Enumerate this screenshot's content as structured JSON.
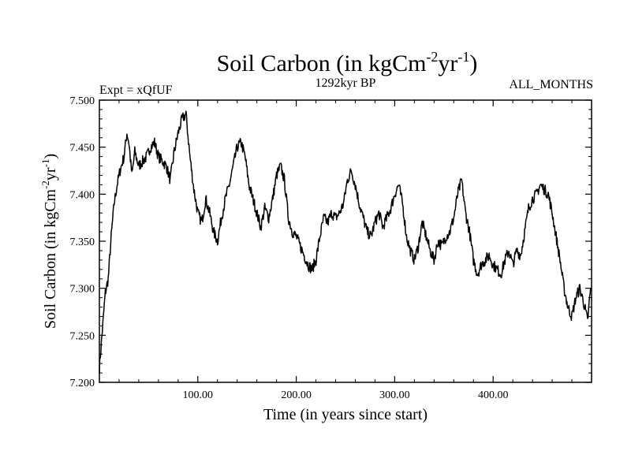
{
  "chart_data": {
    "type": "line",
    "title": {
      "main": "Soil Carbon (in kgCm",
      "sup1": "-2",
      "mid": "yr",
      "sup2": "-1",
      "end": ")"
    },
    "subtitle_left": "Expt = xQfUF",
    "subtitle_center": "1292kyr BP",
    "subtitle_right": "ALL_MONTHS",
    "xlabel": "Time (in years since start)",
    "ylabel": {
      "main": "Soil Carbon (in kgCm",
      "sup1": "-2",
      "mid": "yr",
      "sup2": "-1",
      "end": ")"
    },
    "xlim": [
      0,
      500
    ],
    "ylim": [
      7.2,
      7.5
    ],
    "x_ticks": [
      {
        "value": 100,
        "label": "100.00"
      },
      {
        "value": 200,
        "label": "200.00"
      },
      {
        "value": 300,
        "label": "300.00"
      },
      {
        "value": 400,
        "label": "400.00"
      }
    ],
    "y_ticks": [
      {
        "value": 7.2,
        "label": "7.200"
      },
      {
        "value": 7.25,
        "label": "7.250"
      },
      {
        "value": 7.3,
        "label": "7.300"
      },
      {
        "value": 7.35,
        "label": "7.350"
      },
      {
        "value": 7.4,
        "label": "7.400"
      },
      {
        "value": 7.45,
        "label": "7.450"
      },
      {
        "value": 7.5,
        "label": "7.500"
      }
    ],
    "series": [
      {
        "name": "Soil Carbon",
        "x": [
          0,
          3,
          6,
          9,
          12,
          15,
          18,
          21,
          25,
          28,
          30,
          33,
          36,
          40,
          44,
          48,
          52,
          56,
          60,
          64,
          68,
          72,
          76,
          80,
          84,
          88,
          92,
          96,
          100,
          104,
          108,
          112,
          116,
          120,
          124,
          128,
          132,
          136,
          140,
          144,
          148,
          152,
          156,
          160,
          164,
          168,
          172,
          176,
          180,
          184,
          188,
          192,
          196,
          200,
          204,
          208,
          212,
          216,
          220,
          224,
          228,
          232,
          236,
          240,
          244,
          248,
          252,
          256,
          260,
          264,
          268,
          272,
          276,
          280,
          284,
          288,
          292,
          296,
          300,
          304,
          308,
          312,
          316,
          320,
          324,
          328,
          332,
          336,
          340,
          344,
          348,
          352,
          356,
          360,
          364,
          368,
          372,
          376,
          380,
          384,
          388,
          392,
          396,
          400,
          404,
          408,
          412,
          416,
          420,
          424,
          428,
          432,
          436,
          440,
          444,
          448,
          452,
          456,
          460,
          464,
          468,
          472,
          476,
          480,
          484,
          488,
          492,
          496,
          499
        ],
        "values": [
          7.215,
          7.255,
          7.295,
          7.31,
          7.355,
          7.39,
          7.41,
          7.425,
          7.44,
          7.465,
          7.455,
          7.42,
          7.445,
          7.43,
          7.435,
          7.44,
          7.45,
          7.455,
          7.44,
          7.435,
          7.43,
          7.415,
          7.445,
          7.465,
          7.48,
          7.485,
          7.44,
          7.405,
          7.38,
          7.37,
          7.395,
          7.38,
          7.36,
          7.35,
          7.375,
          7.395,
          7.41,
          7.43,
          7.45,
          7.455,
          7.44,
          7.41,
          7.395,
          7.38,
          7.365,
          7.385,
          7.375,
          7.395,
          7.42,
          7.43,
          7.415,
          7.375,
          7.36,
          7.355,
          7.345,
          7.335,
          7.325,
          7.32,
          7.33,
          7.355,
          7.375,
          7.37,
          7.38,
          7.375,
          7.38,
          7.39,
          7.415,
          7.425,
          7.41,
          7.39,
          7.375,
          7.36,
          7.355,
          7.37,
          7.38,
          7.365,
          7.375,
          7.385,
          7.4,
          7.41,
          7.39,
          7.355,
          7.34,
          7.33,
          7.345,
          7.37,
          7.355,
          7.34,
          7.33,
          7.35,
          7.345,
          7.355,
          7.36,
          7.375,
          7.4,
          7.415,
          7.38,
          7.36,
          7.33,
          7.315,
          7.325,
          7.33,
          7.335,
          7.325,
          7.32,
          7.315,
          7.33,
          7.34,
          7.325,
          7.34,
          7.335,
          7.36,
          7.385,
          7.395,
          7.4,
          7.41,
          7.405,
          7.4,
          7.38,
          7.355,
          7.33,
          7.3,
          7.28,
          7.27,
          7.29,
          7.3,
          7.285,
          7.265,
          7.3
        ]
      }
    ]
  }
}
